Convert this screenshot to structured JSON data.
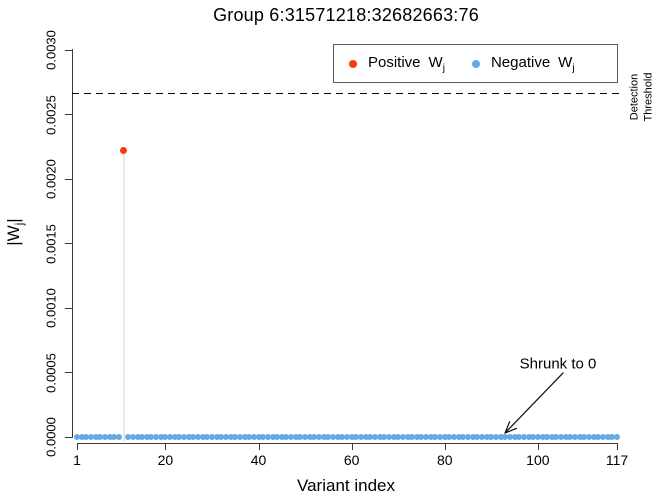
{
  "title": "Group 6:31571218:32682663:76",
  "legend": {
    "items": [
      {
        "name": "positive",
        "label": "Positive",
        "symbol": "W",
        "subscript": "j",
        "color": "#f8390e"
      },
      {
        "name": "negative",
        "label": "Negative",
        "symbol": "W",
        "subscript": "j",
        "color": "#65a9e6"
      }
    ]
  },
  "threshold_label": {
    "line1": "Detection",
    "line2": "Threshold"
  },
  "annotation_text": "Shrunk to 0",
  "colors": {
    "positive_point": "#f8390e",
    "negative_point": "#65a9e6",
    "threshold_line": "#000000",
    "stem": "#e9e9e9",
    "axis": "#3a3a3a"
  },
  "chart_data": {
    "type": "scatter",
    "title": "Group 6:31571218:32682663:76",
    "xlabel": "Variant index",
    "ylabel": "|W_j|",
    "xlim": [
      1,
      117
    ],
    "ylim": [
      0,
      0.003
    ],
    "grid": false,
    "legend_position": "top-right-inside",
    "x_ticks": [
      1,
      20,
      40,
      60,
      80,
      100,
      117
    ],
    "y_ticks": [
      0,
      0.0005,
      0.001,
      0.0015,
      0.002,
      0.0025,
      0.003
    ],
    "y_tick_labels": [
      "0.0000",
      "0.0005",
      "0.0010",
      "0.0015",
      "0.0020",
      "0.0025",
      "0.0030"
    ],
    "series": [
      {
        "name": "Positive W_j",
        "color": "#f8390e",
        "marker_px": 7,
        "points": [
          {
            "x": 11,
            "y": 0.00222
          }
        ]
      },
      {
        "name": "Negative W_j",
        "color": "#65a9e6",
        "marker_px": 6,
        "points_spec": {
          "x_start": 1,
          "x_end": 117,
          "exclude_x": [
            11
          ],
          "y": 0
        }
      }
    ],
    "threshold": {
      "y": 0.00267,
      "style": "dashed",
      "label": "Detection Threshold"
    },
    "annotation": {
      "text": "Shrunk to 0",
      "points_to_x": 93,
      "points_to_y": 0
    }
  }
}
